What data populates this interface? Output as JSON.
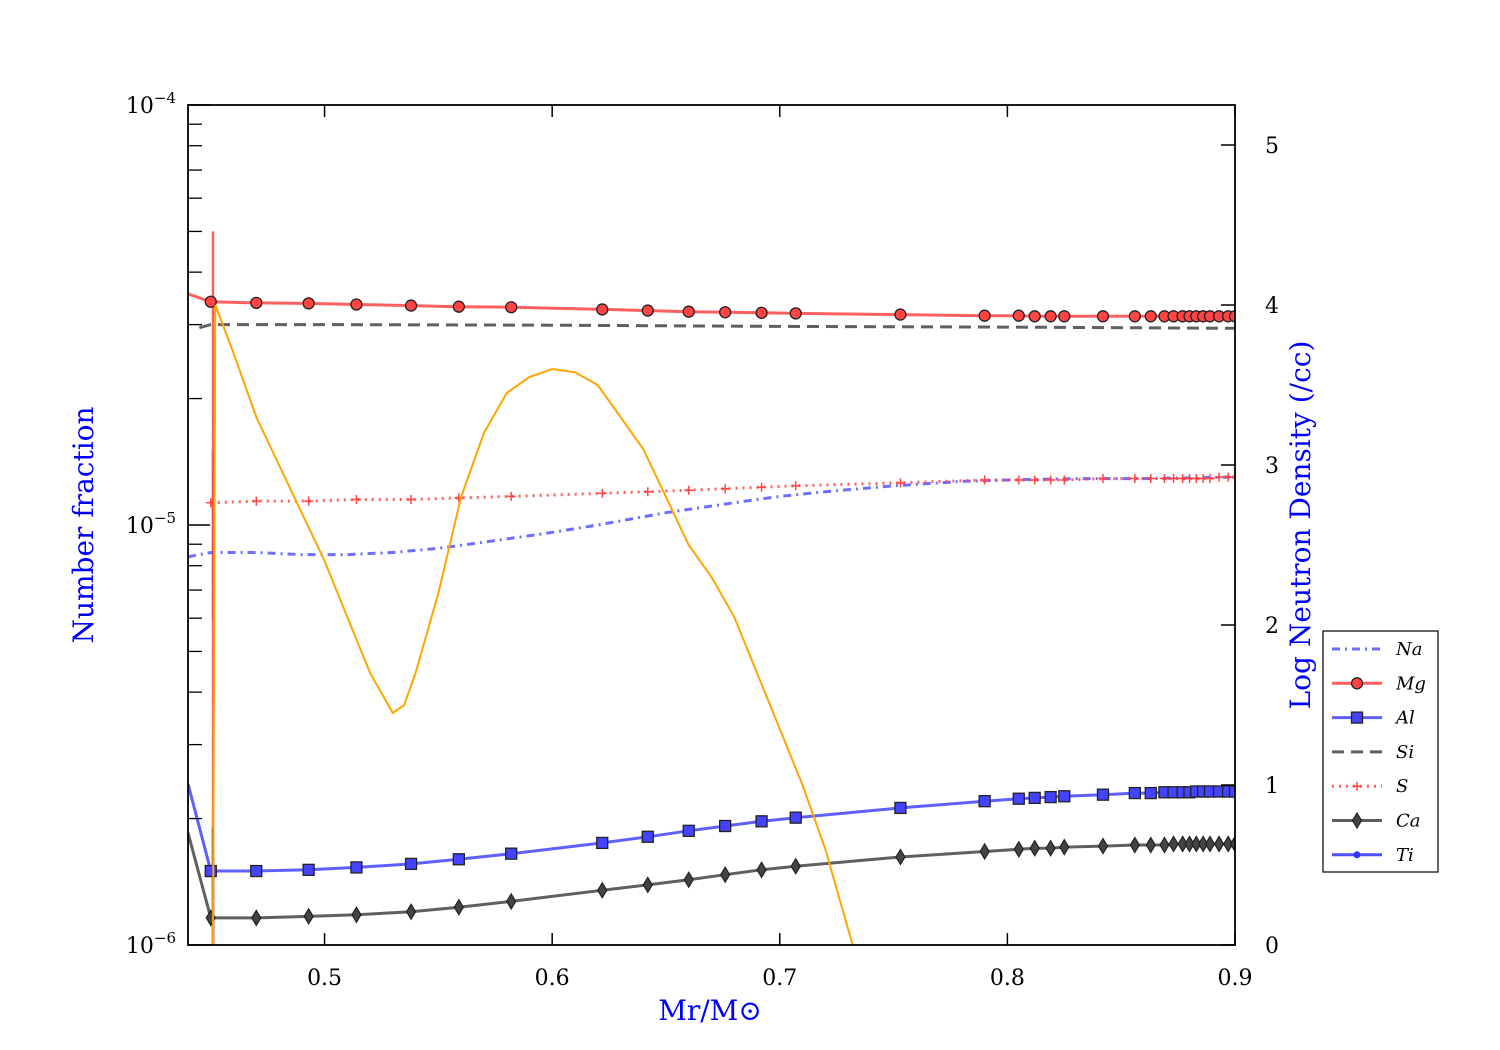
{
  "chart_data": {
    "type": "line",
    "xlabel": "Mr/M⊙",
    "ylabel_left": "Number fraction",
    "ylabel_right": "Log Neutron Density (/cc)",
    "xlim": [
      0.44,
      0.9
    ],
    "ylim_left": [
      1e-06,
      0.0001
    ],
    "yscale_left": "log",
    "ylim_right": [
      0,
      5.25
    ],
    "x_ticks": [
      "0.5",
      "0.6",
      "0.7",
      "0.8",
      "0.9"
    ],
    "x_tick_values": [
      0.5,
      0.6,
      0.7,
      0.8,
      0.9
    ],
    "y_left_ticks": [
      {
        "base": "10",
        "exp": "−6",
        "value": 1e-06
      },
      {
        "base": "10",
        "exp": "−5",
        "value": 1e-05
      },
      {
        "base": "10",
        "exp": "−4",
        "value": 0.0001
      }
    ],
    "y_right_ticks": [
      "0",
      "1",
      "2",
      "3",
      "4",
      "5"
    ],
    "y_right_tick_values": [
      0,
      1,
      2,
      3,
      4,
      5
    ],
    "legend_position": "right",
    "series": [
      {
        "name": "Na",
        "axis": "left",
        "color": "#5555ff",
        "dash": "8,5,2,5",
        "marker": "none",
        "points": [
          [
            0.44,
            8.4e-06
          ],
          [
            0.45,
            8.6e-06
          ],
          [
            0.47,
            8.6e-06
          ],
          [
            0.49,
            8.5e-06
          ],
          [
            0.51,
            8.5e-06
          ],
          [
            0.53,
            8.6e-06
          ],
          [
            0.55,
            8.8e-06
          ],
          [
            0.57,
            9.1e-06
          ],
          [
            0.6,
            9.6e-06
          ],
          [
            0.62,
            1e-05
          ],
          [
            0.65,
            1.07e-05
          ],
          [
            0.68,
            1.13e-05
          ],
          [
            0.7,
            1.17e-05
          ],
          [
            0.72,
            1.2e-05
          ],
          [
            0.75,
            1.24e-05
          ],
          [
            0.78,
            1.27e-05
          ],
          [
            0.8,
            1.28e-05
          ],
          [
            0.83,
            1.29e-05
          ],
          [
            0.86,
            1.29e-05
          ],
          [
            0.9,
            1.3e-05
          ]
        ]
      },
      {
        "name": "Mg",
        "axis": "left",
        "color": "#ff4444",
        "dash": "",
        "marker": "circle",
        "points": [
          [
            0.44,
            3.55e-05
          ],
          [
            0.45,
            3.4e-05
          ],
          [
            0.47,
            3.38e-05
          ],
          [
            0.493,
            3.37e-05
          ],
          [
            0.514,
            3.35e-05
          ],
          [
            0.538,
            3.33e-05
          ],
          [
            0.559,
            3.31e-05
          ],
          [
            0.582,
            3.3e-05
          ],
          [
            0.622,
            3.26e-05
          ],
          [
            0.642,
            3.24e-05
          ],
          [
            0.66,
            3.22e-05
          ],
          [
            0.676,
            3.21e-05
          ],
          [
            0.692,
            3.2e-05
          ],
          [
            0.707,
            3.19e-05
          ],
          [
            0.753,
            3.17e-05
          ],
          [
            0.79,
            3.15e-05
          ],
          [
            0.805,
            3.15e-05
          ],
          [
            0.812,
            3.14e-05
          ],
          [
            0.819,
            3.14e-05
          ],
          [
            0.825,
            3.14e-05
          ],
          [
            0.842,
            3.14e-05
          ],
          [
            0.856,
            3.14e-05
          ],
          [
            0.863,
            3.14e-05
          ],
          [
            0.869,
            3.14e-05
          ],
          [
            0.873,
            3.14e-05
          ],
          [
            0.877,
            3.14e-05
          ],
          [
            0.88,
            3.14e-05
          ],
          [
            0.883,
            3.14e-05
          ],
          [
            0.886,
            3.14e-05
          ],
          [
            0.889,
            3.14e-05
          ],
          [
            0.893,
            3.14e-05
          ],
          [
            0.897,
            3.14e-05
          ],
          [
            0.9,
            3.14e-05
          ]
        ]
      },
      {
        "name": "Al",
        "axis": "left",
        "color": "#4444ff",
        "dash": "",
        "marker": "square",
        "points": [
          [
            0.44,
            2.42e-06
          ],
          [
            0.45,
            1.5e-06
          ],
          [
            0.47,
            1.5e-06
          ],
          [
            0.493,
            1.51e-06
          ],
          [
            0.514,
            1.53e-06
          ],
          [
            0.538,
            1.56e-06
          ],
          [
            0.559,
            1.6e-06
          ],
          [
            0.582,
            1.65e-06
          ],
          [
            0.622,
            1.75e-06
          ],
          [
            0.642,
            1.81e-06
          ],
          [
            0.66,
            1.87e-06
          ],
          [
            0.676,
            1.92e-06
          ],
          [
            0.692,
            1.97e-06
          ],
          [
            0.707,
            2.01e-06
          ],
          [
            0.753,
            2.12e-06
          ],
          [
            0.79,
            2.2e-06
          ],
          [
            0.805,
            2.23e-06
          ],
          [
            0.812,
            2.24e-06
          ],
          [
            0.819,
            2.25e-06
          ],
          [
            0.825,
            2.26e-06
          ],
          [
            0.842,
            2.28e-06
          ],
          [
            0.856,
            2.3e-06
          ],
          [
            0.863,
            2.3e-06
          ],
          [
            0.869,
            2.31e-06
          ],
          [
            0.873,
            2.31e-06
          ],
          [
            0.877,
            2.31e-06
          ],
          [
            0.88,
            2.31e-06
          ],
          [
            0.883,
            2.32e-06
          ],
          [
            0.886,
            2.32e-06
          ],
          [
            0.889,
            2.32e-06
          ],
          [
            0.893,
            2.32e-06
          ],
          [
            0.897,
            2.32e-06
          ],
          [
            0.9,
            2.32e-06
          ]
        ]
      },
      {
        "name": "Si",
        "axis": "left",
        "color": "#444444",
        "dash": "12,7",
        "marker": "none",
        "points": [
          [
            0.445,
            2.95e-05
          ],
          [
            0.45,
            3e-05
          ],
          [
            0.5,
            3e-05
          ],
          [
            0.6,
            2.99e-05
          ],
          [
            0.7,
            2.97e-05
          ],
          [
            0.8,
            2.96e-05
          ],
          [
            0.9,
            2.94e-05
          ]
        ]
      },
      {
        "name": "S",
        "axis": "left",
        "color": "#ff4444",
        "dash": "2,5",
        "marker": "plus",
        "points": [
          [
            0.45,
            1.13e-05
          ],
          [
            0.47,
            1.14e-05
          ],
          [
            0.493,
            1.14e-05
          ],
          [
            0.514,
            1.15e-05
          ],
          [
            0.538,
            1.15e-05
          ],
          [
            0.559,
            1.16e-05
          ],
          [
            0.582,
            1.17e-05
          ],
          [
            0.622,
            1.19e-05
          ],
          [
            0.642,
            1.2e-05
          ],
          [
            0.66,
            1.21e-05
          ],
          [
            0.676,
            1.22e-05
          ],
          [
            0.692,
            1.23e-05
          ],
          [
            0.707,
            1.24e-05
          ],
          [
            0.753,
            1.26e-05
          ],
          [
            0.79,
            1.28e-05
          ],
          [
            0.805,
            1.28e-05
          ],
          [
            0.812,
            1.28e-05
          ],
          [
            0.819,
            1.28e-05
          ],
          [
            0.825,
            1.28e-05
          ],
          [
            0.842,
            1.29e-05
          ],
          [
            0.856,
            1.29e-05
          ],
          [
            0.863,
            1.29e-05
          ],
          [
            0.869,
            1.29e-05
          ],
          [
            0.873,
            1.29e-05
          ],
          [
            0.877,
            1.29e-05
          ],
          [
            0.88,
            1.29e-05
          ],
          [
            0.883,
            1.29e-05
          ],
          [
            0.886,
            1.29e-05
          ],
          [
            0.889,
            1.29e-05
          ],
          [
            0.893,
            1.3e-05
          ],
          [
            0.897,
            1.3e-05
          ],
          [
            0.9,
            1.3e-05
          ]
        ]
      },
      {
        "name": "Ca",
        "axis": "left",
        "color": "#444444",
        "dash": "",
        "marker": "diamond",
        "points": [
          [
            0.44,
            1.85e-06
          ],
          [
            0.45,
            1.16e-06
          ],
          [
            0.47,
            1.16e-06
          ],
          [
            0.493,
            1.17e-06
          ],
          [
            0.514,
            1.18e-06
          ],
          [
            0.538,
            1.2e-06
          ],
          [
            0.559,
            1.23e-06
          ],
          [
            0.582,
            1.27e-06
          ],
          [
            0.622,
            1.35e-06
          ],
          [
            0.642,
            1.39e-06
          ],
          [
            0.66,
            1.43e-06
          ],
          [
            0.676,
            1.47e-06
          ],
          [
            0.692,
            1.51e-06
          ],
          [
            0.707,
            1.54e-06
          ],
          [
            0.753,
            1.62e-06
          ],
          [
            0.79,
            1.67e-06
          ],
          [
            0.805,
            1.69e-06
          ],
          [
            0.812,
            1.7e-06
          ],
          [
            0.819,
            1.7e-06
          ],
          [
            0.825,
            1.71e-06
          ],
          [
            0.842,
            1.72e-06
          ],
          [
            0.856,
            1.73e-06
          ],
          [
            0.863,
            1.73e-06
          ],
          [
            0.869,
            1.73e-06
          ],
          [
            0.873,
            1.74e-06
          ],
          [
            0.877,
            1.74e-06
          ],
          [
            0.88,
            1.74e-06
          ],
          [
            0.883,
            1.74e-06
          ],
          [
            0.886,
            1.74e-06
          ],
          [
            0.889,
            1.74e-06
          ],
          [
            0.893,
            1.74e-06
          ],
          [
            0.897,
            1.74e-06
          ],
          [
            0.9,
            1.74e-06
          ]
        ]
      },
      {
        "name": "Ti",
        "axis": "left",
        "color": "#3333ff",
        "dash": "",
        "marker": "dot",
        "points": []
      },
      {
        "name": "",
        "axis": "right",
        "color": "#ffa500",
        "dash": "",
        "marker": "none",
        "points": [
          [
            0.451,
            0.0
          ],
          [
            0.452,
            4.0
          ],
          [
            0.46,
            3.7
          ],
          [
            0.47,
            3.3
          ],
          [
            0.48,
            3.0
          ],
          [
            0.49,
            2.7
          ],
          [
            0.5,
            2.4
          ],
          [
            0.51,
            2.05
          ],
          [
            0.52,
            1.7
          ],
          [
            0.53,
            1.45
          ],
          [
            0.535,
            1.5
          ],
          [
            0.54,
            1.7
          ],
          [
            0.55,
            2.2
          ],
          [
            0.56,
            2.8
          ],
          [
            0.57,
            3.2
          ],
          [
            0.58,
            3.45
          ],
          [
            0.59,
            3.55
          ],
          [
            0.6,
            3.6
          ],
          [
            0.61,
            3.58
          ],
          [
            0.62,
            3.5
          ],
          [
            0.63,
            3.3
          ],
          [
            0.64,
            3.1
          ],
          [
            0.65,
            2.8
          ],
          [
            0.66,
            2.5
          ],
          [
            0.67,
            2.3
          ],
          [
            0.68,
            2.05
          ],
          [
            0.69,
            1.7
          ],
          [
            0.7,
            1.35
          ],
          [
            0.71,
            1.0
          ],
          [
            0.72,
            0.6
          ],
          [
            0.73,
            0.1
          ],
          [
            0.732,
            0.0
          ]
        ]
      }
    ],
    "spikes": [
      {
        "axis": "left",
        "color": "#ff4444",
        "x": 0.451,
        "y_from": 1e-06,
        "y_to": 5e-05
      },
      {
        "axis": "left",
        "color": "#ff4444",
        "x": 0.451,
        "y_from": 6e-06,
        "y_to": 1.5e-05
      },
      {
        "axis": "left",
        "color": "#444444",
        "x": 0.451,
        "y_from": 1e-06,
        "y_to": 1.9e-06
      }
    ]
  }
}
